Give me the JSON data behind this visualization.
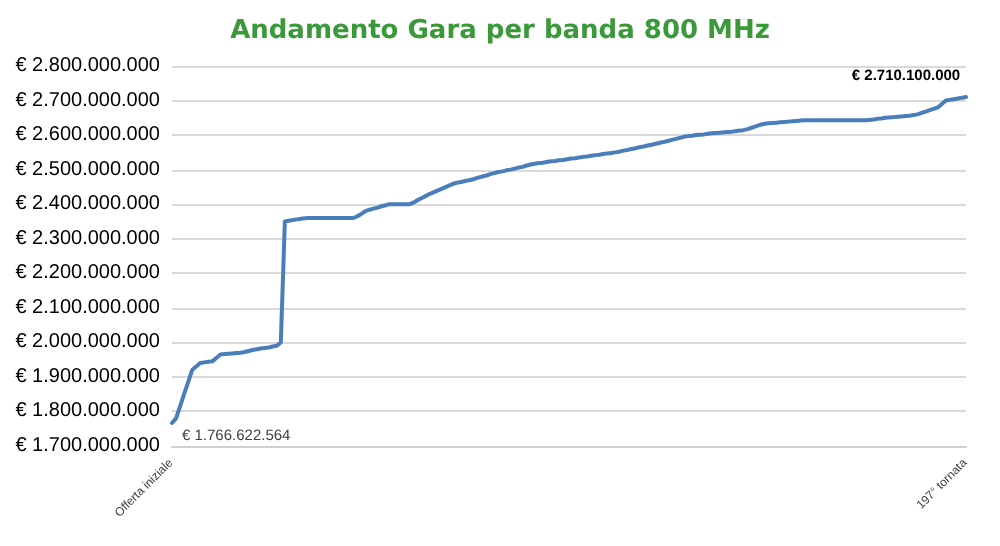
{
  "chart_data": {
    "type": "line",
    "title": "Andamento Gara per banda 800 MHz",
    "categories": [
      "Offerta iniziale",
      null,
      null,
      null,
      null,
      null,
      null,
      null,
      null,
      null,
      null,
      null,
      null,
      null,
      null,
      null,
      null,
      null,
      null,
      null,
      null,
      null,
      null,
      null,
      null,
      null,
      null,
      null,
      null,
      null,
      null,
      null,
      null,
      null,
      null,
      null,
      null,
      null,
      null,
      null,
      null,
      null,
      null,
      null,
      null,
      null,
      null,
      null,
      null,
      null,
      null,
      null,
      null,
      null,
      null,
      null,
      null,
      null,
      null,
      null,
      null,
      null,
      null,
      null,
      null,
      null,
      null,
      null,
      null,
      null,
      null,
      null,
      null,
      null,
      null,
      null,
      null,
      null,
      null,
      null,
      null,
      null,
      null,
      null,
      null,
      null,
      null,
      null,
      null,
      null,
      null,
      null,
      null,
      null,
      null,
      null,
      null,
      null,
      null,
      null,
      null,
      null,
      null,
      null,
      null,
      null,
      null,
      null,
      null,
      null,
      null,
      null,
      null,
      null,
      null,
      null,
      null,
      null,
      null,
      null,
      null,
      null,
      null,
      null,
      null,
      null,
      null,
      null,
      null,
      null,
      null,
      null,
      null,
      null,
      null,
      null,
      null,
      null,
      null,
      null,
      null,
      null,
      null,
      null,
      null,
      null,
      null,
      null,
      null,
      null,
      null,
      null,
      null,
      null,
      null,
      null,
      null,
      null,
      null,
      null,
      null,
      null,
      null,
      null,
      null,
      null,
      null,
      null,
      null,
      null,
      null,
      null,
      null,
      null,
      null,
      null,
      null,
      null,
      null,
      null,
      null,
      null,
      null,
      null,
      null,
      null,
      null,
      null,
      null,
      null,
      null,
      null,
      null,
      null,
      null,
      null,
      null,
      "197° tornata"
    ],
    "series": [
      {
        "color": "#4a7ebb",
        "values": [
          1766622564,
          1780000000,
          1815000000,
          1850000000,
          1885000000,
          1920000000,
          1930000000,
          1940000000,
          1942000000,
          1944000000,
          1945000000,
          1955000000,
          1965000000,
          1966000000,
          1967000000,
          1968000000,
          1969000000,
          1970000000,
          1972000000,
          1975000000,
          1978000000,
          1980000000,
          1982000000,
          1984000000,
          1985000000,
          1988000000,
          1990000000,
          2000000000,
          2350000000,
          2352000000,
          2354000000,
          2356000000,
          2358000000,
          2359000000,
          2360000000,
          2360000000,
          2360000000,
          2360000000,
          2360000000,
          2360000000,
          2360000000,
          2360000000,
          2360000000,
          2360000000,
          2360000000,
          2360000000,
          2365000000,
          2372000000,
          2380000000,
          2384000000,
          2387000000,
          2390000000,
          2394000000,
          2397000000,
          2400000000,
          2400000000,
          2400000000,
          2400000000,
          2400000000,
          2400000000,
          2405000000,
          2412000000,
          2418000000,
          2424000000,
          2430000000,
          2435000000,
          2440000000,
          2445000000,
          2450000000,
          2455000000,
          2460000000,
          2463000000,
          2465000000,
          2468000000,
          2470000000,
          2473000000,
          2477000000,
          2480000000,
          2483000000,
          2487000000,
          2490000000,
          2493000000,
          2495000000,
          2498000000,
          2500000000,
          2503000000,
          2506000000,
          2508000000,
          2512000000,
          2515000000,
          2517000000,
          2519000000,
          2520000000,
          2522000000,
          2524000000,
          2525000000,
          2527000000,
          2528000000,
          2530000000,
          2532000000,
          2533000000,
          2535000000,
          2537000000,
          2538000000,
          2540000000,
          2542000000,
          2543000000,
          2545000000,
          2547000000,
          2548000000,
          2550000000,
          2552000000,
          2555000000,
          2557000000,
          2560000000,
          2562000000,
          2565000000,
          2567000000,
          2570000000,
          2572000000,
          2575000000,
          2578000000,
          2580000000,
          2583000000,
          2586000000,
          2589000000,
          2592000000,
          2595000000,
          2597000000,
          2598000000,
          2600000000,
          2601000000,
          2602000000,
          2604000000,
          2605000000,
          2606000000,
          2607000000,
          2608000000,
          2609000000,
          2610000000,
          2612000000,
          2613000000,
          2615000000,
          2618000000,
          2622000000,
          2626000000,
          2630000000,
          2633000000,
          2634000000,
          2635000000,
          2636000000,
          2637000000,
          2638000000,
          2639000000,
          2640000000,
          2641000000,
          2642000000,
          2643000000,
          2643000000,
          2643000000,
          2643000000,
          2643000000,
          2643000000,
          2643000000,
          2643000000,
          2643000000,
          2643000000,
          2643000000,
          2643000000,
          2643000000,
          2643000000,
          2643000000,
          2643000000,
          2644000000,
          2645000000,
          2647000000,
          2648000000,
          2650000000,
          2651000000,
          2652000000,
          2653000000,
          2654000000,
          2655000000,
          2656000000,
          2658000000,
          2660000000,
          2664000000,
          2668000000,
          2672000000,
          2676000000,
          2680000000,
          2690000000,
          2700000000,
          2702000000,
          2704000000,
          2706000000,
          2708000000,
          2710100000
        ],
        "value_labels": [
          "€ 1.766.622.564",
          null,
          null,
          null,
          null,
          null,
          null,
          null,
          null,
          null,
          null,
          null,
          null,
          null,
          null,
          null,
          null,
          null,
          null,
          null,
          null,
          null,
          null,
          null,
          null,
          null,
          null,
          null,
          null,
          null,
          null,
          null,
          null,
          null,
          null,
          null,
          null,
          null,
          null,
          null,
          null,
          null,
          null,
          null,
          null,
          null,
          null,
          null,
          null,
          null,
          null,
          null,
          null,
          null,
          null,
          null,
          null,
          null,
          null,
          null,
          null,
          null,
          null,
          null,
          null,
          null,
          null,
          null,
          null,
          null,
          null,
          null,
          null,
          null,
          null,
          null,
          null,
          null,
          null,
          null,
          null,
          null,
          null,
          null,
          null,
          null,
          null,
          null,
          null,
          null,
          null,
          null,
          null,
          null,
          null,
          null,
          null,
          null,
          null,
          null,
          null,
          null,
          null,
          null,
          null,
          null,
          null,
          null,
          null,
          null,
          null,
          null,
          null,
          null,
          null,
          null,
          null,
          null,
          null,
          null,
          null,
          null,
          null,
          null,
          null,
          null,
          null,
          null,
          null,
          null,
          null,
          null,
          null,
          null,
          null,
          null,
          null,
          null,
          null,
          null,
          null,
          null,
          null,
          null,
          null,
          null,
          null,
          null,
          null,
          null,
          null,
          null,
          null,
          null,
          null,
          null,
          null,
          null,
          null,
          null,
          null,
          null,
          null,
          null,
          null,
          null,
          null,
          null,
          null,
          null,
          null,
          null,
          null,
          null,
          null,
          null,
          null,
          null,
          null,
          null,
          null,
          null,
          null,
          null,
          null,
          null,
          null,
          null,
          null,
          null,
          null,
          null,
          null,
          null,
          null,
          null,
          null,
          "€ 2.710.100.000"
        ]
      }
    ],
    "ylim": [
      1700000000,
      2800000000
    ],
    "yticks": [
      {
        "value": 1700000000,
        "label": "€ 1.700.000.000"
      },
      {
        "value": 1800000000,
        "label": "€ 1.800.000.000"
      },
      {
        "value": 1900000000,
        "label": "€ 1.900.000.000"
      },
      {
        "value": 2000000000,
        "label": "€ 2.000.000.000"
      },
      {
        "value": 2100000000,
        "label": "€ 2.100.000.000"
      },
      {
        "value": 2200000000,
        "label": "€ 2.200.000.000"
      },
      {
        "value": 2300000000,
        "label": "€ 2.300.000.000"
      },
      {
        "value": 2400000000,
        "label": "€ 2.400.000.000"
      },
      {
        "value": 2500000000,
        "label": "€ 2.500.000.000"
      },
      {
        "value": 2600000000,
        "label": "€ 2.600.000.000"
      },
      {
        "value": 2700000000,
        "label": "€ 2.700.000.000"
      },
      {
        "value": 2800000000,
        "label": "€ 2.800.000.000"
      }
    ],
    "grid": "y",
    "marker": "none",
    "line_style": "solid"
  }
}
